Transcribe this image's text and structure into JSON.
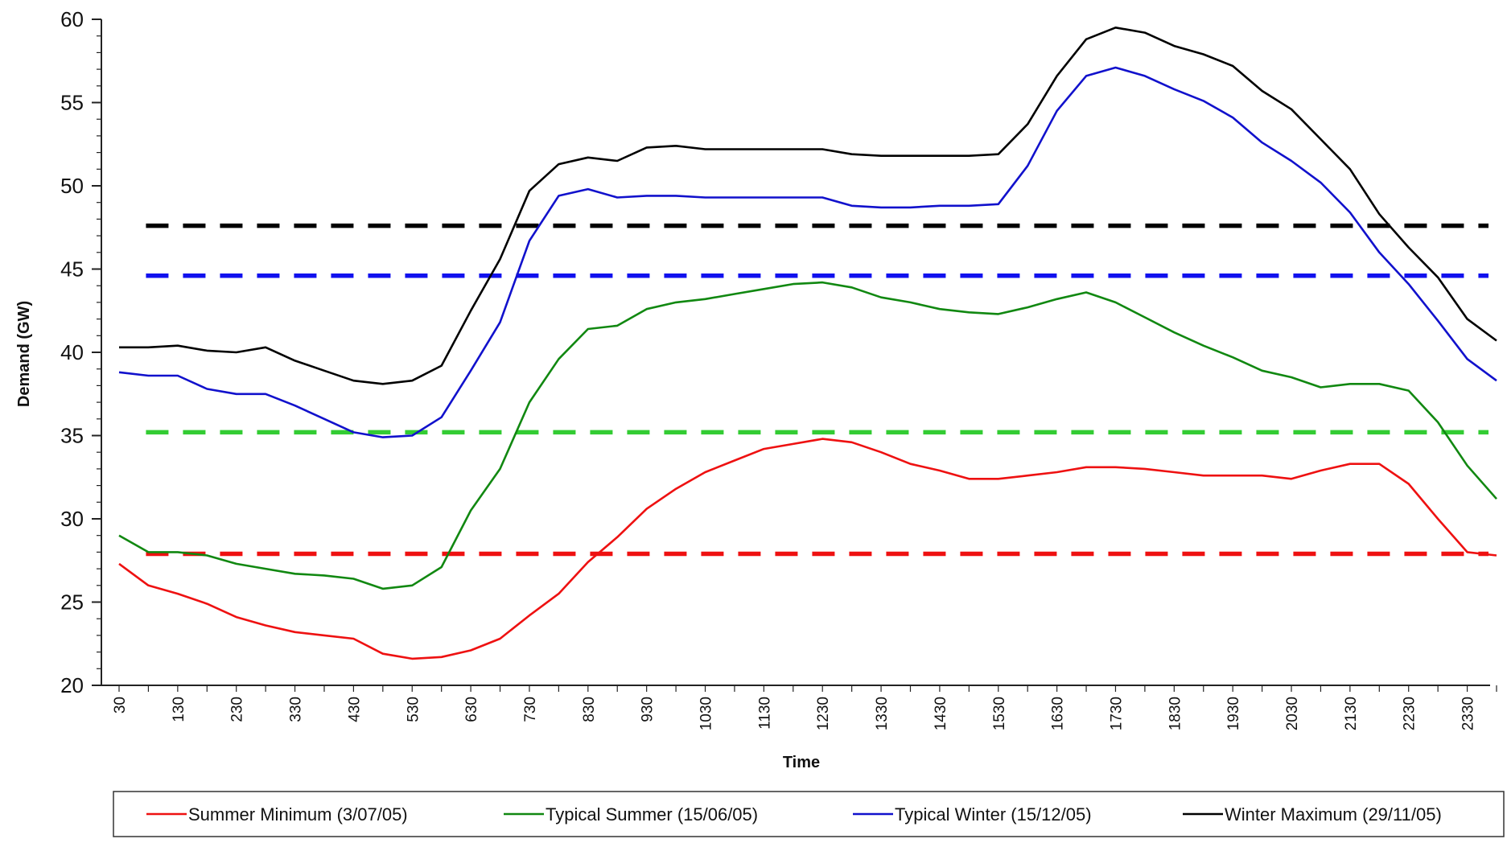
{
  "chart_data": {
    "type": "line",
    "xlabel": "Time",
    "ylabel": "Demand (GW)",
    "ylim": [
      20,
      60
    ],
    "yticks": [
      20,
      25,
      30,
      35,
      40,
      45,
      50,
      55,
      60
    ],
    "x_tick_labels": [
      "30",
      "130",
      "230",
      "330",
      "430",
      "530",
      "630",
      "730",
      "830",
      "930",
      "1030",
      "1130",
      "1230",
      "1330",
      "1430",
      "1530",
      "1630",
      "1730",
      "1830",
      "1930",
      "2030",
      "2130",
      "2230",
      "2330"
    ],
    "x": [
      "30",
      "100",
      "130",
      "200",
      "230",
      "300",
      "330",
      "400",
      "430",
      "500",
      "530",
      "600",
      "630",
      "700",
      "730",
      "800",
      "830",
      "900",
      "930",
      "1000",
      "1030",
      "1100",
      "1130",
      "1200",
      "1230",
      "1300",
      "1330",
      "1400",
      "1430",
      "1500",
      "1530",
      "1600",
      "1630",
      "1700",
      "1730",
      "1800",
      "1830",
      "1900",
      "1930",
      "2000",
      "2030",
      "2100",
      "2130",
      "2200",
      "2230",
      "2300",
      "2330",
      "2400"
    ],
    "grid": false,
    "legend_position": "bottom",
    "series": [
      {
        "name": "Summer Minimum (3/07/05)",
        "color": "#ee1111",
        "values": [
          27.3,
          26.0,
          25.5,
          24.9,
          24.1,
          23.6,
          23.2,
          23.0,
          22.8,
          21.9,
          21.6,
          21.7,
          22.1,
          22.8,
          24.2,
          25.5,
          27.4,
          28.9,
          30.6,
          31.8,
          32.8,
          33.5,
          34.2,
          34.5,
          34.8,
          34.6,
          34.0,
          33.3,
          32.9,
          32.4,
          32.4,
          32.6,
          32.8,
          33.1,
          33.1,
          33.0,
          32.8,
          32.6,
          32.6,
          32.6,
          32.4,
          32.9,
          33.3,
          33.3,
          32.1,
          30.0,
          28.0,
          27.8
        ]
      },
      {
        "name": "Typical Summer (15/06/05)",
        "color": "#118811",
        "values": [
          29.0,
          28.0,
          28.0,
          27.8,
          27.3,
          27.0,
          26.7,
          26.6,
          26.4,
          25.8,
          26.0,
          27.1,
          30.5,
          33.0,
          37.0,
          39.6,
          41.4,
          41.6,
          42.6,
          43.0,
          43.2,
          43.5,
          43.8,
          44.1,
          44.2,
          43.9,
          43.3,
          43.0,
          42.6,
          42.4,
          42.3,
          42.7,
          43.2,
          43.6,
          43.0,
          42.1,
          41.2,
          40.4,
          39.7,
          38.9,
          38.5,
          37.9,
          38.1,
          38.1,
          37.7,
          35.8,
          33.2,
          31.2
        ]
      },
      {
        "name": "Typical Winter (15/12/05)",
        "color": "#1111cc",
        "values": [
          38.8,
          38.6,
          38.6,
          37.8,
          37.5,
          37.5,
          36.8,
          36.0,
          35.2,
          34.9,
          35.0,
          36.1,
          38.9,
          41.8,
          46.7,
          49.4,
          49.8,
          49.3,
          49.4,
          49.4,
          49.3,
          49.3,
          49.3,
          49.3,
          49.3,
          48.8,
          48.7,
          48.7,
          48.8,
          48.8,
          48.9,
          51.2,
          54.5,
          56.6,
          57.1,
          56.6,
          55.8,
          55.1,
          54.1,
          52.6,
          51.5,
          50.2,
          48.4,
          46.0,
          44.1,
          41.9,
          39.6,
          38.3
        ]
      },
      {
        "name": "Winter Maximum (29/11/05)",
        "color": "#000000",
        "values": [
          40.3,
          40.3,
          40.4,
          40.1,
          40.0,
          40.3,
          39.5,
          38.9,
          38.3,
          38.1,
          38.3,
          39.2,
          42.5,
          45.6,
          49.7,
          51.3,
          51.7,
          51.5,
          52.3,
          52.4,
          52.2,
          52.2,
          52.2,
          52.2,
          52.2,
          51.9,
          51.8,
          51.8,
          51.8,
          51.8,
          51.9,
          53.7,
          56.6,
          58.8,
          59.5,
          59.2,
          58.4,
          57.9,
          57.2,
          55.7,
          54.6,
          52.8,
          51.0,
          48.3,
          46.3,
          44.5,
          42.0,
          40.7
        ]
      }
    ],
    "reference_lines": [
      {
        "color": "#000000",
        "y": 47.6
      },
      {
        "color": "#1111ee",
        "y": 44.6
      },
      {
        "color": "#33cc33",
        "y": 35.2
      },
      {
        "color": "#ee1111",
        "y": 27.9
      }
    ]
  }
}
